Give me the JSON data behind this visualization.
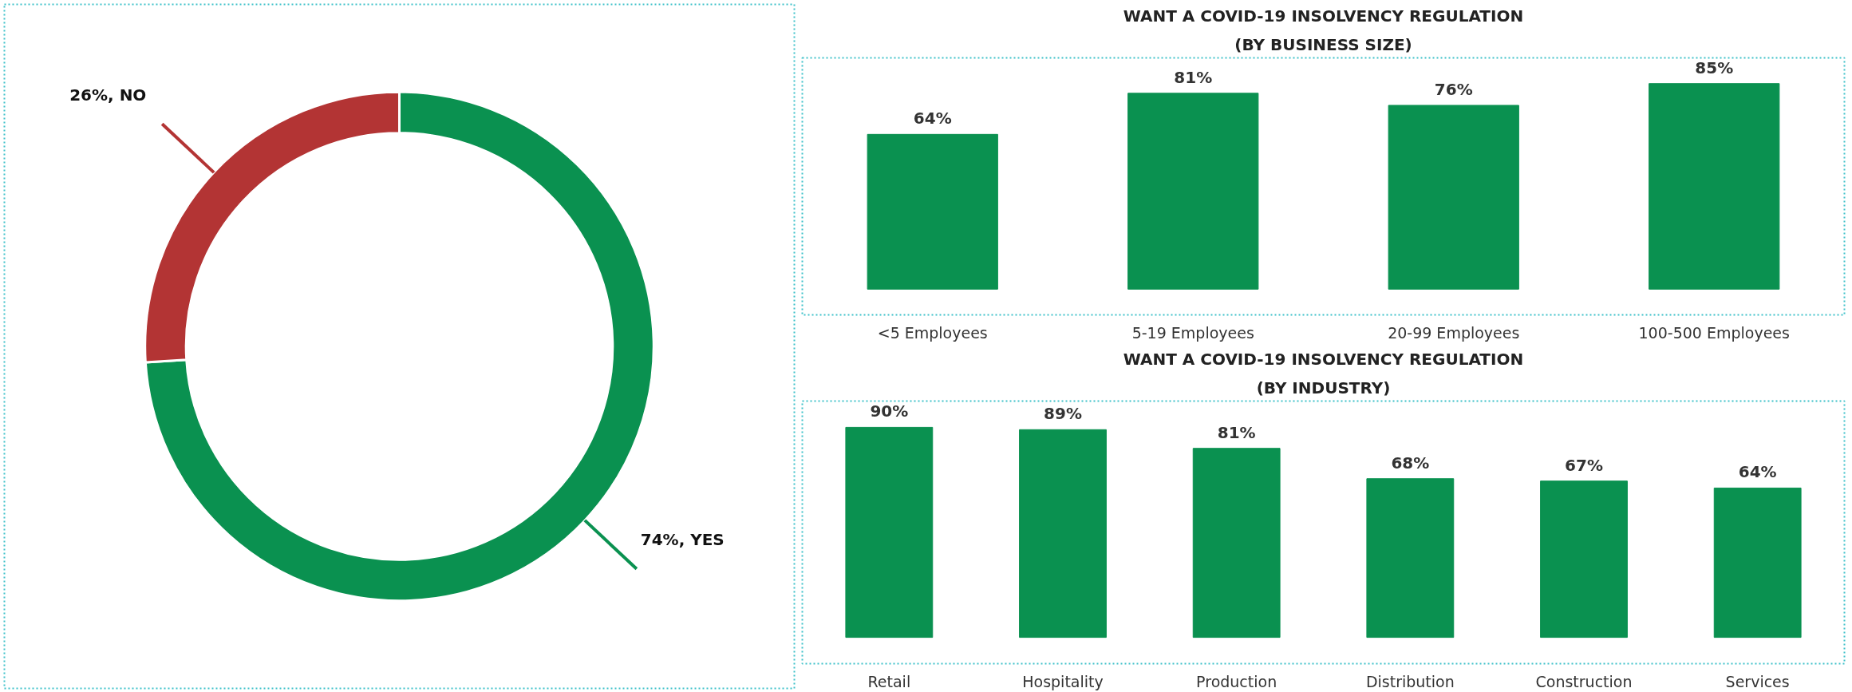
{
  "chart_data": [
    {
      "type": "donut",
      "categories": [
        "YES",
        "NO"
      ],
      "values": [
        74,
        26
      ],
      "colors": [
        "#0a9150",
        "#b33434"
      ],
      "value_labels": [
        "74%",
        "26%"
      ]
    },
    {
      "type": "bar",
      "title": "WANT A COVID-19 INSOLVENCY REGULATION",
      "subtitle": "(BY BUSINESS SIZE)",
      "categories": [
        "<5 Employees",
        "5-19 Employees",
        "20-99 Employees",
        "100-500 Employees"
      ],
      "values": [
        64,
        81,
        76,
        85
      ],
      "value_labels": [
        "64%",
        "81%",
        "76%",
        "85%"
      ],
      "color": "#0a9150",
      "grid": false,
      "tick_labels": "x"
    },
    {
      "type": "bar",
      "title": "WANT A COVID-19 INSOLVENCY REGULATION",
      "subtitle": "(BY INDUSTRY)",
      "categories": [
        "Retail",
        "Hospitality",
        "Production",
        "Distribution",
        "Construction",
        "Services"
      ],
      "values": [
        90,
        89,
        81,
        68,
        67,
        64
      ],
      "value_labels": [
        "90%",
        "89%",
        "81%",
        "68%",
        "67%",
        "64%"
      ],
      "color": "#0a9150",
      "grid": false,
      "tick_labels": "x"
    }
  ]
}
